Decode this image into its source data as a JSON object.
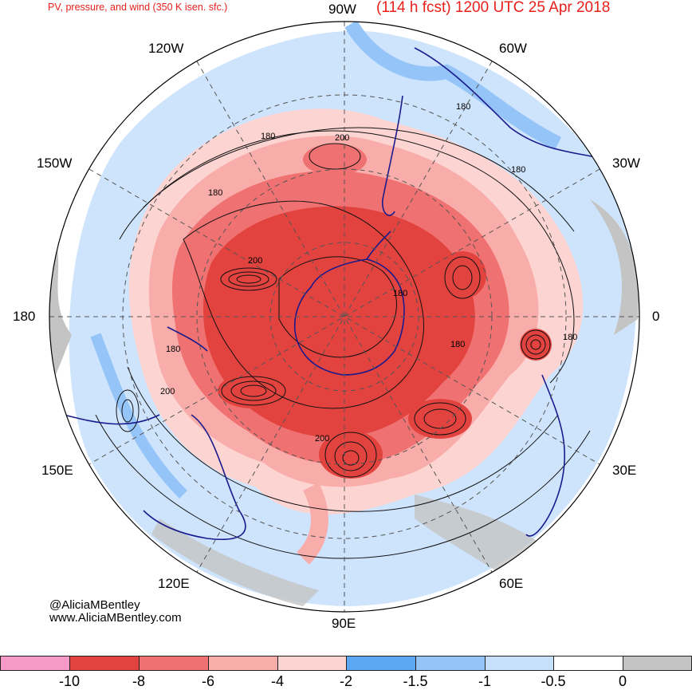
{
  "header": {
    "title_left": "PV, pressure, and wind (350 K isen. sfc.)",
    "title_right": "(114 h fcst) 1200 UTC 25 Apr 2018"
  },
  "map": {
    "longitude_labels": {
      "top": "90W",
      "upper_left": "120W",
      "upper_right": "60W",
      "left_upper": "150W",
      "right_upper": "30W",
      "left": "180",
      "right": "0",
      "left_lower": "150E",
      "right_lower": "30E",
      "lower_left": "120E",
      "lower_right": "60E",
      "bottom": "90E"
    },
    "contour_labels": [
      "200",
      "180",
      "180",
      "180",
      "200",
      "180",
      "180",
      "180",
      "200",
      "180",
      "200",
      "180"
    ]
  },
  "credit": {
    "handle": "@AliciaMBentley",
    "website": "www.AliciaMBentley.com"
  },
  "legend": {
    "colors": [
      "#f59ac6",
      "#e2433f",
      "#f07171",
      "#f9adab",
      "#fcd5d2",
      "#5ba7f3",
      "#95c4f8",
      "#c6dffb",
      "#ffffff",
      "#c4c4c4"
    ],
    "ticks": [
      "-10",
      "-8",
      "-6",
      "-4",
      "-2",
      "-1.5",
      "-1",
      "-0.5",
      "0"
    ]
  }
}
